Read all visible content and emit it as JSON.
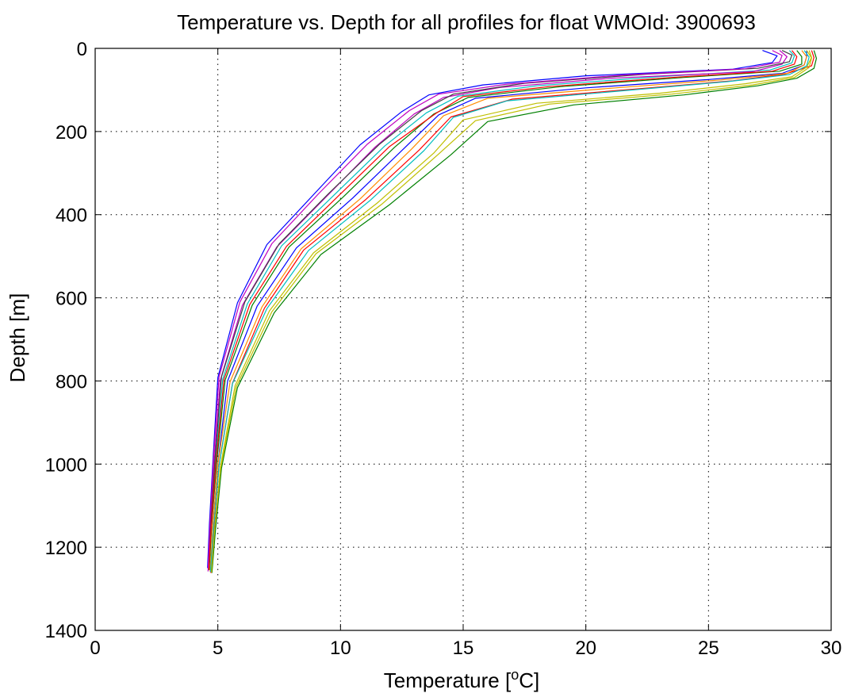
{
  "chart_data": {
    "type": "line",
    "title": "Temperature vs. Depth for all profiles for float WMOId: 3900693",
    "xlabel_main": "Temperature [",
    "xlabel_sup": "o",
    "xlabel_end": "C]",
    "ylabel": "Depth [m]",
    "xlim": [
      0,
      30
    ],
    "ylim": [
      0,
      1400
    ],
    "y_reversed": true,
    "grid": true,
    "legend": "none",
    "x_ticks": [
      0,
      5,
      10,
      15,
      20,
      25,
      30
    ],
    "y_ticks": [
      0,
      200,
      400,
      600,
      800,
      1000,
      1200,
      1400
    ],
    "series_colors": [
      "#0000ff",
      "#008000",
      "#ff0000",
      "#00bfbf",
      "#bf00bf",
      "#bfbf00",
      "#404040",
      "#ff8c00"
    ],
    "series": [
      {
        "x": [
          29.0,
          29.0,
          28.9,
          28.0,
          25.0,
          20.0,
          15.5,
          14.0,
          12.6,
          10.5,
          8.2,
          6.6,
          5.4,
          5.0,
          4.8,
          4.7
        ],
        "y": [
          5,
          20,
          40,
          60,
          75,
          95,
          120,
          160,
          240,
          360,
          480,
          620,
          800,
          1000,
          1150,
          1260
        ]
      },
      {
        "x": [
          28.6,
          28.8,
          28.8,
          27.9,
          24.0,
          19.0,
          15.2,
          13.8,
          12.2,
          10.1,
          7.9,
          6.4,
          5.3,
          4.95,
          4.75,
          4.65
        ],
        "y": [
          5,
          20,
          38,
          55,
          70,
          92,
          118,
          158,
          238,
          358,
          478,
          618,
          798,
          998,
          1148,
          1255
        ]
      },
      {
        "x": [
          29.2,
          29.3,
          29.2,
          28.1,
          26.0,
          22.0,
          17.0,
          14.5,
          13.2,
          11.0,
          8.5,
          6.9,
          5.6,
          5.05,
          4.85,
          4.72
        ],
        "y": [
          5,
          22,
          42,
          62,
          78,
          98,
          122,
          165,
          245,
          365,
          485,
          625,
          805,
          1002,
          1152,
          1262
        ]
      },
      {
        "x": [
          28.3,
          28.5,
          28.4,
          27.5,
          23.0,
          18.0,
          14.8,
          13.5,
          11.8,
          9.7,
          7.6,
          6.2,
          5.2,
          4.9,
          4.72,
          4.62
        ],
        "y": [
          5,
          18,
          35,
          52,
          68,
          90,
          115,
          155,
          235,
          355,
          475,
          615,
          795,
          995,
          1145,
          1250
        ]
      },
      {
        "x": [
          27.9,
          28.2,
          28.0,
          26.8,
          21.0,
          16.5,
          14.2,
          13.0,
          11.4,
          9.4,
          7.4,
          6.0,
          5.1,
          4.85,
          4.7,
          4.6
        ],
        "y": [
          5,
          20,
          38,
          56,
          72,
          94,
          118,
          158,
          238,
          358,
          478,
          618,
          798,
          998,
          1148,
          1258
        ]
      },
      {
        "x": [
          29.1,
          29.2,
          29.0,
          28.4,
          26.5,
          23.0,
          18.0,
          15.0,
          13.8,
          11.5,
          8.9,
          7.1,
          5.7,
          5.1,
          4.88,
          4.75
        ],
        "y": [
          5,
          22,
          45,
          68,
          85,
          108,
          132,
          172,
          252,
          372,
          492,
          632,
          812,
          1008,
          1158,
          1260
        ]
      },
      {
        "x": [
          28.0,
          28.4,
          28.3,
          27.0,
          22.5,
          17.5,
          14.6,
          13.3,
          11.6,
          9.5,
          7.5,
          6.1,
          5.15,
          4.88,
          4.72,
          4.64
        ],
        "y": [
          5,
          16,
          32,
          48,
          62,
          84,
          110,
          150,
          230,
          350,
          470,
          610,
          790,
          990,
          1140,
          1248
        ]
      },
      {
        "x": [
          28.8,
          29.0,
          28.9,
          28.2,
          25.5,
          21.0,
          16.0,
          14.2,
          12.9,
          10.8,
          8.4,
          6.8,
          5.5,
          5.0,
          4.8,
          4.68
        ],
        "y": [
          5,
          20,
          40,
          60,
          76,
          96,
          120,
          162,
          242,
          362,
          482,
          622,
          802,
          1000,
          1150,
          1258
        ]
      },
      {
        "x": [
          27.2,
          27.8,
          27.6,
          26.0,
          20.0,
          15.8,
          13.6,
          12.5,
          10.8,
          8.9,
          7.0,
          5.8,
          5.0,
          4.8,
          4.66,
          4.58
        ],
        "y": [
          5,
          18,
          34,
          50,
          66,
          88,
          112,
          152,
          232,
          352,
          472,
          612,
          792,
          992,
          1142,
          1250
        ]
      },
      {
        "x": [
          29.3,
          29.4,
          29.3,
          28.6,
          27.0,
          24.0,
          19.5,
          16.0,
          14.5,
          12.0,
          9.2,
          7.3,
          5.8,
          5.15,
          4.9,
          4.76
        ],
        "y": [
          5,
          24,
          48,
          72,
          90,
          112,
          136,
          176,
          256,
          376,
          496,
          636,
          816,
          1010,
          1160,
          1262
        ]
      },
      {
        "x": [
          28.4,
          28.6,
          28.5,
          27.6,
          23.5,
          18.5,
          15.0,
          13.9,
          12.0,
          9.9,
          7.8,
          6.3,
          5.25,
          4.92,
          4.74,
          4.63
        ],
        "y": [
          5,
          20,
          38,
          55,
          70,
          92,
          116,
          156,
          236,
          356,
          476,
          616,
          796,
          996,
          1146,
          1254
        ]
      },
      {
        "x": [
          28.9,
          29.1,
          29.0,
          28.3,
          25.8,
          21.5,
          16.8,
          14.6,
          13.4,
          11.2,
          8.7,
          7.0,
          5.6,
          5.05,
          4.83,
          4.7
        ],
        "y": [
          5,
          21,
          42,
          63,
          80,
          102,
          126,
          166,
          246,
          366,
          486,
          626,
          806,
          1004,
          1154,
          1259
        ]
      },
      {
        "x": [
          27.6,
          28.0,
          27.9,
          26.5,
          21.5,
          16.8,
          14.0,
          12.8,
          11.1,
          9.1,
          7.2,
          5.9,
          5.05,
          4.82,
          4.68,
          4.6
        ],
        "y": [
          5,
          17,
          33,
          49,
          64,
          86,
          110,
          150,
          230,
          350,
          470,
          610,
          790,
          990,
          1140,
          1250
        ]
      },
      {
        "x": [
          29.0,
          29.2,
          29.1,
          28.5,
          26.8,
          23.5,
          18.5,
          15.5,
          14.0,
          11.7,
          9.0,
          7.2,
          5.75,
          5.12,
          4.87,
          4.74
        ],
        "y": [
          5,
          23,
          46,
          70,
          88,
          110,
          134,
          174,
          254,
          374,
          494,
          634,
          814,
          1008,
          1158,
          1261
        ]
      }
    ]
  }
}
